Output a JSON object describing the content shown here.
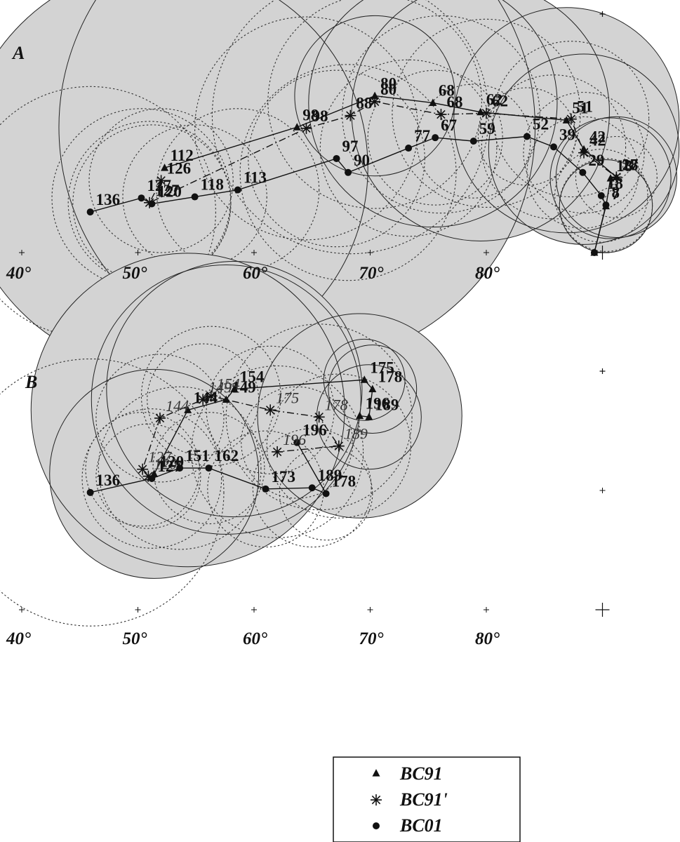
{
  "chart_data": [
    {
      "type": "scatter",
      "panel": "A",
      "x_tick_labels": [
        "40°",
        "50°",
        "60°",
        "70°",
        "80°"
      ],
      "series": [
        {
          "name": "BC91",
          "marker": "triangle",
          "style": "solid",
          "region": "filled",
          "points": [
            {
              "label": "112",
              "pos": [
                52.3,
                38.4
              ],
              "r": 17.5
            },
            {
              "label": "98",
              "pos": [
                63.7,
                41.9
              ],
              "r": 20.5
            },
            {
              "label": "80",
              "pos": [
                70.4,
                44.6
              ],
              "r": 6.9
            },
            {
              "label": "68",
              "pos": [
                75.4,
                44.0
              ],
              "r": 10.7
            },
            {
              "label": "62",
              "pos": [
                79.5,
                43.2
              ],
              "r": 11.1
            },
            {
              "label": "51",
              "pos": [
                86.9,
                42.5
              ],
              "r": 9.7
            },
            {
              "label": "42",
              "pos": [
                88.4,
                40.0
              ],
              "r": 8.2
            },
            {
              "label": "27",
              "pos": [
                91.2,
                37.6
              ],
              "r": 5.2
            },
            {
              "label": "18",
              "pos": [
                90.7,
                37.5
              ],
              "r": 5.2
            },
            {
              "label": "7",
              "pos": [
                90.3,
                35.1
              ],
              "r": 4.0
            },
            {
              "label": "",
              "pos": [
                89.3,
                31.1
              ],
              "r": 0
            }
          ]
        },
        {
          "name": "BC91'",
          "marker": "asterisk",
          "style": "dashdot",
          "region": "dotted",
          "points": [
            {
              "label": "126",
              "pos": [
                52.0,
                37.3
              ],
              "r": 6.2
            },
            {
              "label": "127",
              "pos": [
                51.0,
                35.4
              ],
              "r": 7.0
            },
            {
              "label": "98",
              "pos": [
                64.5,
                41.8
              ],
              "r": 9.6
            },
            {
              "label": "88",
              "pos": [
                68.3,
                42.9
              ],
              "r": 11.9
            },
            {
              "label": "80",
              "pos": [
                70.4,
                44.1
              ],
              "r": 9.2
            },
            {
              "label": "68",
              "pos": [
                76.1,
                43.0
              ],
              "r": 8.5
            },
            {
              "label": "62",
              "pos": [
                80.0,
                43.1
              ],
              "r": 8.1
            },
            {
              "label": "51",
              "pos": [
                87.3,
                42.6
              ],
              "r": 6.7
            },
            {
              "label": "42",
              "pos": [
                88.4,
                39.7
              ],
              "r": 5.2
            },
            {
              "label": "18",
              "pos": [
                91.2,
                37.6
              ],
              "r": 3.5
            }
          ]
        },
        {
          "name": "BC01",
          "marker": "circle",
          "style": "solid",
          "region": "dotted",
          "points": [
            {
              "label": "136",
              "pos": [
                45.9,
                34.6
              ],
              "r": 10.8
            },
            {
              "label": "127",
              "pos": [
                50.3,
                35.8
              ],
              "r": 7.7
            },
            {
              "label": "120",
              "pos": [
                51.2,
                35.3
              ],
              "r": 6.8
            },
            {
              "label": "118",
              "pos": [
                54.9,
                35.9
              ],
              "r": 6.2
            },
            {
              "label": "113",
              "pos": [
                58.6,
                36.5
              ],
              "r": 7.0
            },
            {
              "label": "97",
              "pos": [
                67.1,
                39.2
              ],
              "r": 7.6
            },
            {
              "label": "90",
              "pos": [
                68.1,
                38.0
              ],
              "r": 9.3
            },
            {
              "label": "77",
              "pos": [
                73.3,
                40.1
              ],
              "r": 7.6
            },
            {
              "label": "67",
              "pos": [
                75.6,
                41.0
              ],
              "r": 5.8
            },
            {
              "label": "59",
              "pos": [
                78.9,
                40.7
              ],
              "r": 4.9
            },
            {
              "label": "52",
              "pos": [
                83.5,
                41.1
              ],
              "r": 4.2
            },
            {
              "label": "39",
              "pos": [
                85.8,
                40.2
              ],
              "r": 6.2
            },
            {
              "label": "29",
              "pos": [
                88.3,
                38.0
              ],
              "r": 4.8
            },
            {
              "label": "18",
              "pos": [
                89.9,
                36.0
              ],
              "r": 4.0
            },
            {
              "label": "8",
              "pos": [
                90.3,
                35.2
              ],
              "r": 4.0
            },
            {
              "label": "",
              "pos": [
                89.3,
                31.1
              ],
              "r": 0
            }
          ]
        }
      ]
    },
    {
      "type": "scatter",
      "panel": "B",
      "x_tick_labels": [
        "40°",
        "50°",
        "60°",
        "70°",
        "80°"
      ],
      "series": [
        {
          "name": "BC91",
          "marker": "triangle",
          "style": "solid",
          "region": "filled",
          "points": [
            {
              "label": "120",
              "pos": [
                51.4,
                42.8
              ],
              "r": 9.0
            },
            {
              "label": "144",
              "pos": [
                54.3,
                48.3
              ],
              "r": 13.5
            },
            {
              "label": "149",
              "pos": [
                57.6,
                49.2
              ],
              "r": 11.6
            },
            {
              "label": "154",
              "pos": [
                58.3,
                50.1
              ],
              "r": 11.0
            },
            {
              "label": "175",
              "pos": [
                69.5,
                50.9
              ],
              "r": 3.5
            },
            {
              "label": "178",
              "pos": [
                70.2,
                50.1
              ],
              "r": 3.8
            },
            {
              "label": "189",
              "pos": [
                69.9,
                47.7
              ],
              "r": 4.5
            },
            {
              "label": "196",
              "pos": [
                69.1,
                47.8
              ],
              "r": 8.8
            }
          ]
        },
        {
          "name": "BC91'",
          "marker": "asterisk",
          "style": "dashdot",
          "region": "dotted",
          "points": [
            {
              "label": "120",
              "pos": [
                50.9,
                42.6
              ],
              "r": 4.5
            },
            {
              "label": "127",
              "pos": [
                50.4,
                43.2
              ],
              "r": 4.9
            },
            {
              "label": "144",
              "pos": [
                51.9,
                47.6
              ],
              "r": 5.5
            },
            {
              "label": "149",
              "pos": [
                55.6,
                49.2
              ],
              "r": 4.8
            },
            {
              "label": "154",
              "pos": [
                56.3,
                49.5
              ],
              "r": 6.0
            },
            {
              "label": "175",
              "pos": [
                61.4,
                48.3
              ],
              "r": 5.5
            },
            {
              "label": "178",
              "pos": [
                65.6,
                47.7
              ],
              "r": 8.0
            },
            {
              "label": "189",
              "pos": [
                67.3,
                45.2
              ],
              "r": 6.2
            },
            {
              "label": "196",
              "pos": [
                62.0,
                44.7
              ],
              "r": 7.4
            }
          ]
        },
        {
          "name": "BC01",
          "marker": "circle",
          "style": "solid",
          "region": "dotted",
          "points": [
            {
              "label": "136",
              "pos": [
                45.9,
                41.2
              ],
              "r": 11.5
            },
            {
              "label": "127",
              "pos": [
                51.2,
                42.4
              ],
              "r": 6.0
            },
            {
              "label": "151",
              "pos": [
                53.6,
                43.3
              ],
              "r": 7.0
            },
            {
              "label": "162",
              "pos": [
                56.1,
                43.3
              ],
              "r": 4.8
            },
            {
              "label": "173",
              "pos": [
                61.0,
                41.5
              ],
              "r": 5.0
            },
            {
              "label": "189",
              "pos": [
                65.0,
                41.6
              ],
              "r": 5.1
            },
            {
              "label": "178",
              "pos": [
                66.2,
                41.1
              ],
              "r": 4.0
            },
            {
              "label": "196",
              "pos": [
                63.7,
                45.5
              ],
              "r": 4.8
            }
          ]
        }
      ]
    }
  ],
  "legend": {
    "items": [
      {
        "symbol": "triangle",
        "label": "BC91"
      },
      {
        "symbol": "asterisk",
        "label": "BC91'"
      },
      {
        "symbol": "circle",
        "label": "BC01"
      }
    ]
  },
  "colors": {
    "filled_region": "#d3d3d3",
    "ink": "#111111"
  }
}
